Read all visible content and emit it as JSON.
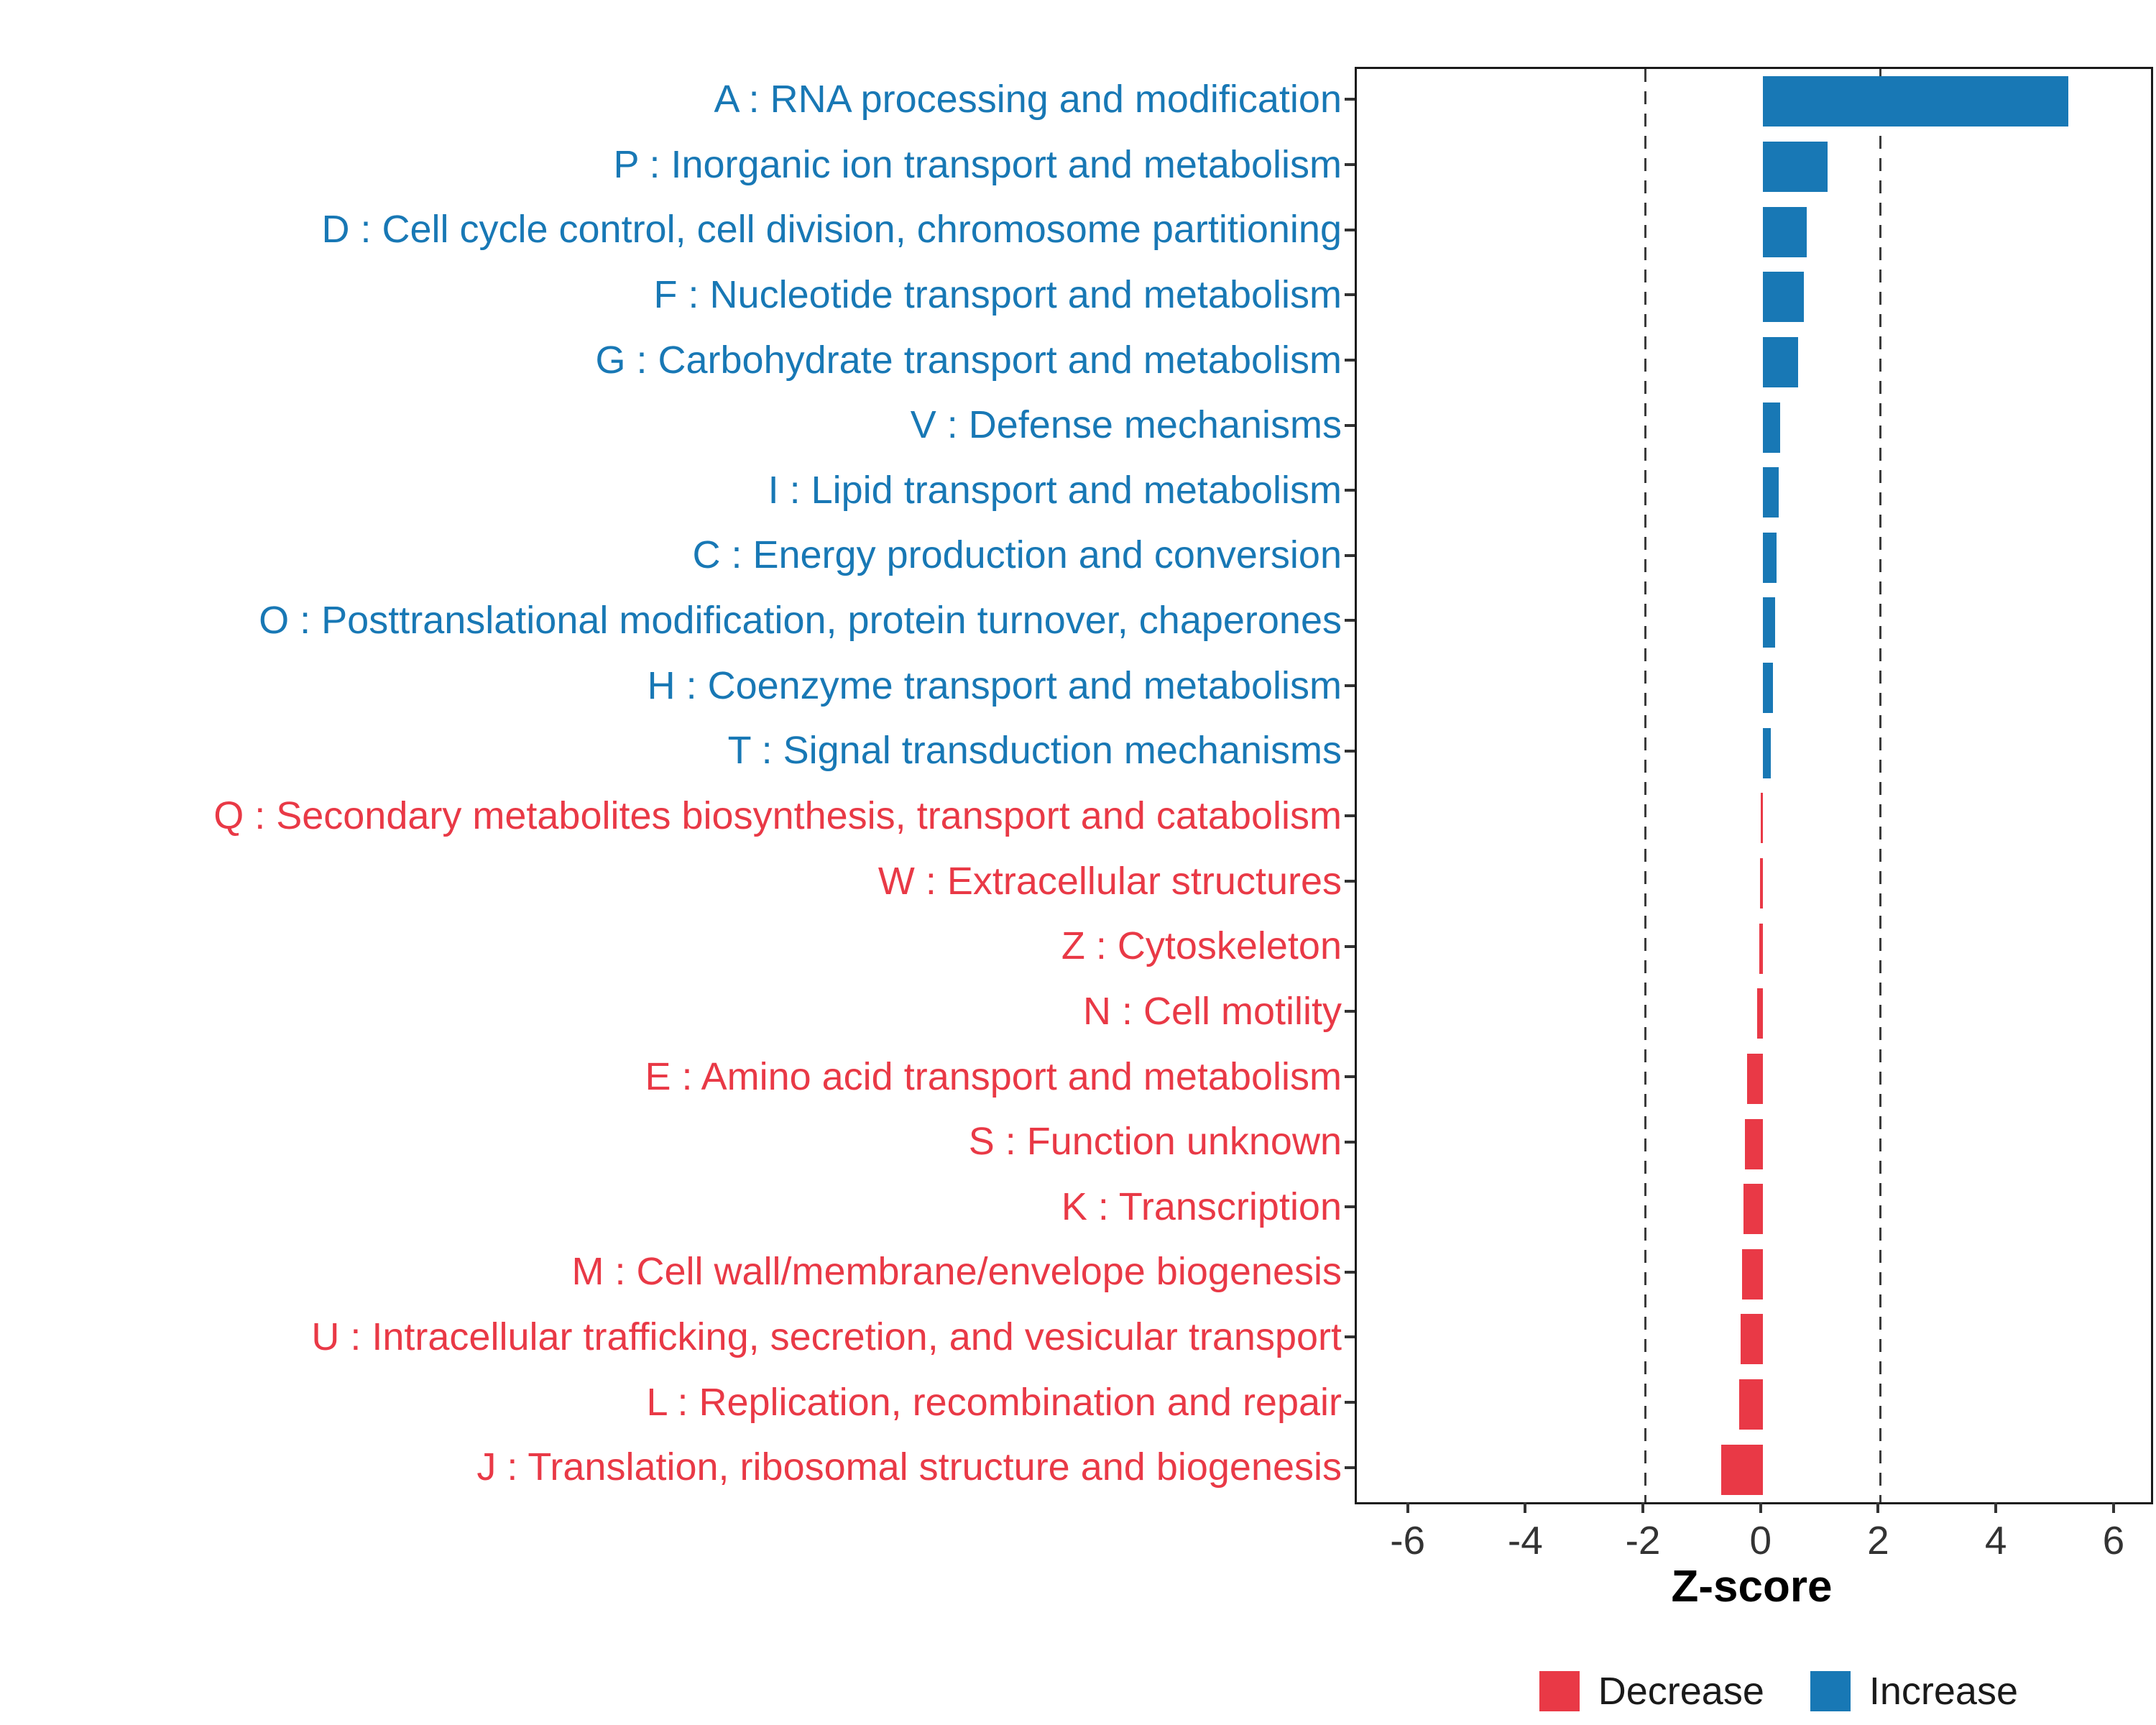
{
  "chart_data": {
    "type": "bar",
    "orientation": "horizontal",
    "title": "",
    "xlabel": "Z-score",
    "ylabel": "",
    "xlim": [
      -6.9,
      6.6
    ],
    "xticks": [
      -6,
      -4,
      -2,
      0,
      2,
      4,
      6
    ],
    "reference_lines": [
      -2,
      2
    ],
    "grid": "off",
    "legend_position": "bottom-right",
    "categories": [
      "A : RNA processing and modification",
      "P : Inorganic ion transport and metabolism",
      "D : Cell cycle control, cell division, chromosome partitioning",
      "F : Nucleotide transport and metabolism",
      "G : Carbohydrate transport and metabolism",
      "V : Defense mechanisms",
      "I : Lipid transport and metabolism",
      "C : Energy production and conversion",
      "O : Posttranslational modification, protein turnover, chaperones",
      "H : Coenzyme transport and metabolism",
      "T : Signal transduction mechanisms",
      "Q : Secondary metabolites biosynthesis, transport and catabolism",
      "W : Extracellular structures",
      "Z : Cytoskeleton",
      "N : Cell motility",
      "E : Amino acid transport and metabolism",
      "S : Function unknown",
      "K : Transcription",
      "M : Cell wall/membrane/envelope biogenesis",
      "U : Intracellular trafficking, secretion, and vesicular transport",
      "L : Replication, recombination and repair",
      "J : Translation, ribosomal structure and biogenesis"
    ],
    "values": [
      5.2,
      1.1,
      0.75,
      0.7,
      0.6,
      0.3,
      0.27,
      0.24,
      0.21,
      0.17,
      0.14,
      -0.03,
      -0.05,
      -0.06,
      -0.09,
      -0.26,
      -0.3,
      -0.33,
      -0.35,
      -0.38,
      -0.4,
      -0.7
    ],
    "groups": [
      "Increase",
      "Increase",
      "Increase",
      "Increase",
      "Increase",
      "Increase",
      "Increase",
      "Increase",
      "Increase",
      "Increase",
      "Increase",
      "Decrease",
      "Decrease",
      "Decrease",
      "Decrease",
      "Decrease",
      "Decrease",
      "Decrease",
      "Decrease",
      "Decrease",
      "Decrease",
      "Decrease"
    ],
    "colors": {
      "Increase": "#1878B5",
      "Decrease": "#E93946"
    },
    "legend": [
      {
        "label": "Decrease",
        "color": "#E93946"
      },
      {
        "label": "Increase",
        "color": "#1878B5"
      }
    ]
  }
}
